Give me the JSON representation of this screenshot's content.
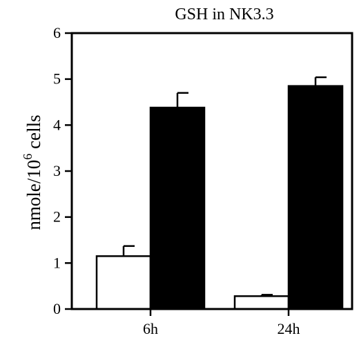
{
  "chart_data": {
    "type": "bar",
    "title": "GSH in NK3.3",
    "ylabel": {
      "prefix": "nmole/10",
      "superscript": "6",
      "suffix": " cells"
    },
    "xlabel": "",
    "categories": [
      "6h",
      "24h"
    ],
    "ylim": [
      0,
      6
    ],
    "yticks": [
      "0",
      "1",
      "2",
      "3",
      "4",
      "5",
      "6"
    ],
    "grid": false,
    "legend": "none",
    "series": [
      {
        "fill": "#ffffff",
        "values": [
          1.15,
          0.28
        ],
        "errors": [
          0.22,
          0.03
        ]
      },
      {
        "fill": "#000000",
        "values": [
          4.38,
          4.85
        ],
        "errors": [
          0.32,
          0.19
        ]
      }
    ]
  }
}
